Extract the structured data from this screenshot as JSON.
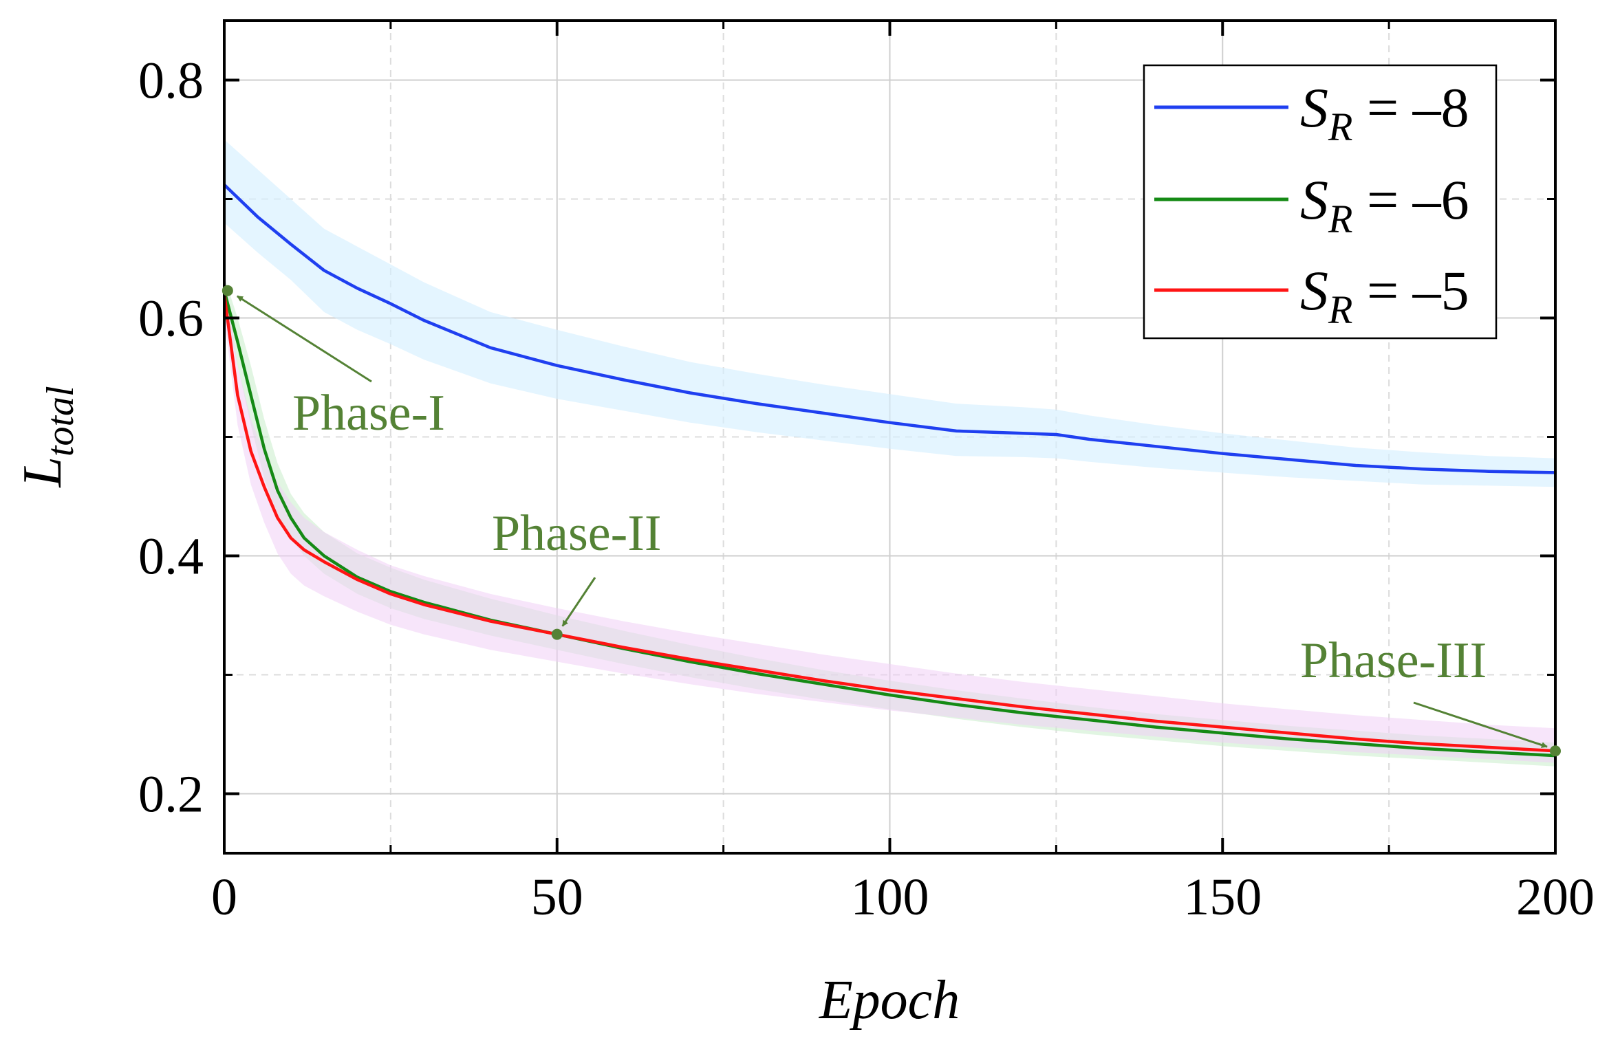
{
  "chart_data": {
    "type": "line",
    "xlabel": "Epoch",
    "ylabel": "L",
    "ylabel_sub": "total",
    "xlim": [
      0,
      200
    ],
    "ylim": [
      0.15,
      0.85
    ],
    "xticks": [
      0,
      50,
      100,
      150,
      200
    ],
    "xtick_labels": [
      "0",
      "50",
      "100",
      "150",
      "200"
    ],
    "xticks_minor": [
      25,
      75,
      125,
      175
    ],
    "yticks": [
      0.2,
      0.4,
      0.6,
      0.8
    ],
    "ytick_labels": [
      "0.2",
      "0.4",
      "0.6",
      "0.8"
    ],
    "yticks_minor": [
      0.3,
      0.5,
      0.7
    ],
    "grid": true,
    "legend_position": "top-right",
    "series": [
      {
        "name": "S_R = –8",
        "legend_main": "S",
        "legend_sub": "R",
        "legend_rest": " = –8",
        "color": "#1f3ff0",
        "band_color": "#d6efff",
        "x": [
          0,
          5,
          10,
          15,
          20,
          25,
          30,
          40,
          50,
          60,
          70,
          80,
          90,
          100,
          110,
          120,
          125,
          130,
          140,
          150,
          160,
          170,
          180,
          190,
          200
        ],
        "y": [
          0.712,
          0.685,
          0.662,
          0.64,
          0.625,
          0.612,
          0.598,
          0.575,
          0.56,
          0.548,
          0.537,
          0.528,
          0.52,
          0.512,
          0.505,
          0.503,
          0.502,
          0.498,
          0.492,
          0.486,
          0.481,
          0.476,
          0.473,
          0.471,
          0.47
        ],
        "lower": [
          0.68,
          0.655,
          0.632,
          0.605,
          0.59,
          0.578,
          0.565,
          0.545,
          0.532,
          0.522,
          0.512,
          0.504,
          0.497,
          0.49,
          0.484,
          0.483,
          0.482,
          0.479,
          0.474,
          0.47,
          0.466,
          0.463,
          0.46,
          0.459,
          0.458
        ],
        "upper": [
          0.75,
          0.725,
          0.7,
          0.675,
          0.66,
          0.645,
          0.63,
          0.605,
          0.59,
          0.576,
          0.563,
          0.553,
          0.544,
          0.536,
          0.528,
          0.525,
          0.523,
          0.518,
          0.51,
          0.503,
          0.497,
          0.491,
          0.487,
          0.484,
          0.482
        ]
      },
      {
        "name": "S_R = –6",
        "legend_main": "S",
        "legend_sub": "R",
        "legend_rest": " = –6",
        "color": "#158a15",
        "band_color": "#c9eccb",
        "x": [
          0,
          2,
          4,
          6,
          8,
          10,
          12,
          15,
          20,
          25,
          30,
          40,
          50,
          60,
          70,
          80,
          90,
          100,
          110,
          120,
          130,
          140,
          150,
          160,
          170,
          180,
          190,
          200
        ],
        "y": [
          0.623,
          0.58,
          0.535,
          0.49,
          0.455,
          0.432,
          0.415,
          0.4,
          0.382,
          0.37,
          0.361,
          0.346,
          0.334,
          0.322,
          0.311,
          0.301,
          0.292,
          0.283,
          0.275,
          0.268,
          0.262,
          0.256,
          0.251,
          0.246,
          0.242,
          0.238,
          0.235,
          0.232
        ],
        "lower": [
          0.61,
          0.56,
          0.51,
          0.465,
          0.435,
          0.415,
          0.4,
          0.385,
          0.368,
          0.356,
          0.347,
          0.333,
          0.321,
          0.309,
          0.298,
          0.288,
          0.279,
          0.271,
          0.263,
          0.256,
          0.25,
          0.245,
          0.24,
          0.236,
          0.232,
          0.229,
          0.226,
          0.223
        ],
        "upper": [
          0.635,
          0.6,
          0.56,
          0.515,
          0.478,
          0.452,
          0.436,
          0.42,
          0.402,
          0.39,
          0.38,
          0.364,
          0.35,
          0.337,
          0.325,
          0.314,
          0.304,
          0.295,
          0.287,
          0.28,
          0.273,
          0.267,
          0.262,
          0.257,
          0.253,
          0.249,
          0.246,
          0.243
        ]
      },
      {
        "name": "S_R = –5",
        "legend_main": "S",
        "legend_sub": "R",
        "legend_rest": " = –5",
        "color": "#ff1414",
        "band_color": "#f0cff5",
        "x": [
          0,
          2,
          4,
          6,
          8,
          10,
          12,
          15,
          20,
          25,
          30,
          40,
          50,
          60,
          70,
          80,
          90,
          100,
          110,
          120,
          130,
          140,
          150,
          160,
          170,
          180,
          190,
          200
        ],
        "y": [
          0.62,
          0.535,
          0.488,
          0.458,
          0.432,
          0.415,
          0.405,
          0.395,
          0.38,
          0.368,
          0.359,
          0.345,
          0.334,
          0.323,
          0.313,
          0.304,
          0.295,
          0.287,
          0.28,
          0.273,
          0.267,
          0.261,
          0.256,
          0.251,
          0.246,
          0.242,
          0.239,
          0.236
        ],
        "lower": [
          0.6,
          0.51,
          0.46,
          0.428,
          0.402,
          0.385,
          0.375,
          0.366,
          0.353,
          0.342,
          0.334,
          0.321,
          0.311,
          0.301,
          0.292,
          0.284,
          0.277,
          0.27,
          0.264,
          0.258,
          0.253,
          0.248,
          0.243,
          0.239,
          0.235,
          0.232,
          0.229,
          0.226
        ],
        "upper": [
          0.64,
          0.56,
          0.515,
          0.487,
          0.462,
          0.445,
          0.432,
          0.42,
          0.405,
          0.392,
          0.383,
          0.368,
          0.356,
          0.345,
          0.335,
          0.326,
          0.317,
          0.309,
          0.301,
          0.294,
          0.288,
          0.282,
          0.276,
          0.271,
          0.266,
          0.262,
          0.258,
          0.255
        ]
      }
    ],
    "annotations": [
      {
        "text": "Phase-I",
        "point": [
          0.5,
          0.623
        ],
        "color": "#548235"
      },
      {
        "text": "Phase-II",
        "point": [
          50,
          0.334
        ],
        "color": "#548235"
      },
      {
        "text": "Phase-III",
        "point": [
          200,
          0.236
        ],
        "color": "#548235"
      }
    ]
  }
}
